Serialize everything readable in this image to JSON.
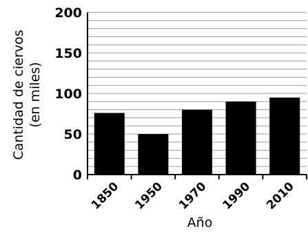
{
  "chart_data": {
    "type": "bar",
    "categories": [
      "1850",
      "1950",
      "1970",
      "1990",
      "2010"
    ],
    "values": [
      76,
      50,
      80,
      90,
      95
    ],
    "title": "",
    "xlabel": "Año",
    "ylabel_lines": [
      "Cantidad de ciervos",
      "(en miles)"
    ],
    "ylim": [
      0,
      200
    ],
    "yticks": [
      "0",
      "50",
      "100",
      "150",
      "200"
    ],
    "grid": true,
    "bar_color": "#000000",
    "grid_color": "#999999"
  }
}
